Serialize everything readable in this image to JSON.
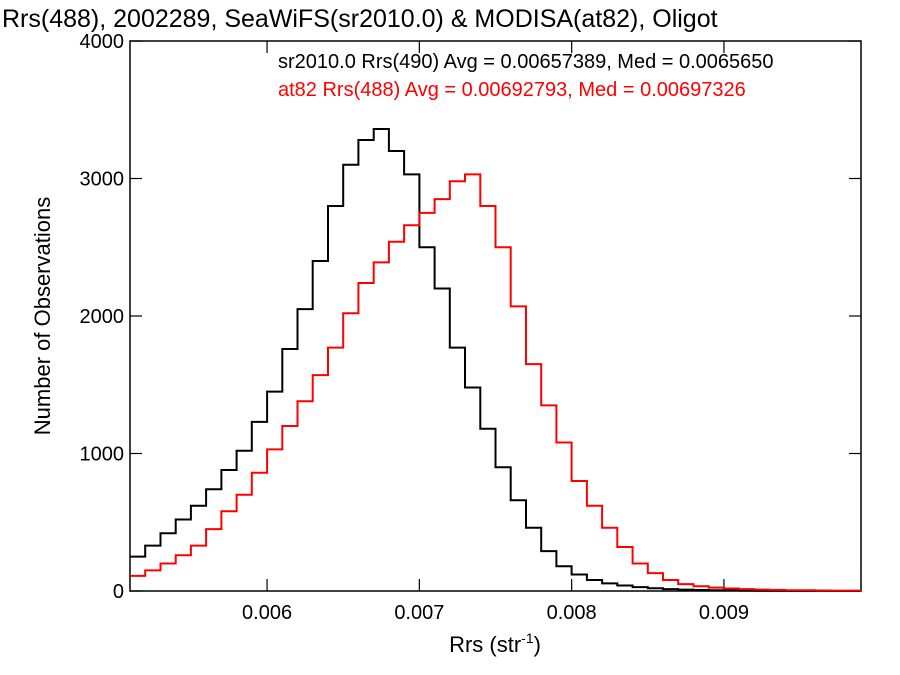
{
  "chart_data": {
    "type": "line",
    "title": "Rrs(488), 2002289, SeaWiFS(sr2010.0) & MODISA(at82), Oligot",
    "xlabel": "Rrs (str",
    "xlabel_sup": "-1",
    "xlabel_close": ")",
    "ylabel": "Number of Observations",
    "xlim": [
      0.0051,
      0.0099
    ],
    "ylim": [
      0,
      4000
    ],
    "x_ticks": [
      0.006,
      0.007,
      0.008,
      0.009
    ],
    "x_tick_labels": [
      "0.006",
      "0.007",
      "0.008",
      "0.009"
    ],
    "y_ticks": [
      0,
      1000,
      2000,
      3000,
      4000
    ],
    "y_tick_labels": [
      "0",
      "1000",
      "2000",
      "3000",
      "4000"
    ],
    "grid": false,
    "step": true,
    "series": [
      {
        "name": "sr2010.0 Rrs(490) Avg = 0.00657389, Med = 0.0065650",
        "color": "#000000",
        "x": [
          0.0051,
          0.0052,
          0.0053,
          0.0054,
          0.0055,
          0.0056,
          0.0057,
          0.0058,
          0.0059,
          0.006,
          0.0061,
          0.0062,
          0.0063,
          0.0064,
          0.0065,
          0.0066,
          0.0067,
          0.0068,
          0.0069,
          0.007,
          0.0071,
          0.0072,
          0.0073,
          0.0074,
          0.0075,
          0.0076,
          0.0077,
          0.0078,
          0.0079,
          0.008,
          0.0081,
          0.0082,
          0.0083,
          0.0084,
          0.0085,
          0.0086,
          0.0087,
          0.0088,
          0.0089,
          0.009,
          0.0091,
          0.0092,
          0.0093,
          0.0094,
          0.0095,
          0.0096,
          0.0097,
          0.0098,
          0.0099
        ],
        "values": [
          250,
          330,
          420,
          520,
          620,
          740,
          880,
          1020,
          1230,
          1450,
          1760,
          2050,
          2400,
          2800,
          3100,
          3280,
          3360,
          3200,
          3030,
          2500,
          2200,
          1770,
          1480,
          1180,
          900,
          660,
          460,
          290,
          180,
          120,
          80,
          55,
          40,
          28,
          20,
          14,
          10,
          7,
          5,
          4,
          3,
          2,
          2,
          1,
          1,
          1,
          0,
          0,
          0
        ]
      },
      {
        "name": "at82 Rrs(488) Avg = 0.00692793, Med = 0.00697326",
        "color": "#ff0000",
        "x": [
          0.0051,
          0.0052,
          0.0053,
          0.0054,
          0.0055,
          0.0056,
          0.0057,
          0.0058,
          0.0059,
          0.006,
          0.0061,
          0.0062,
          0.0063,
          0.0064,
          0.0065,
          0.0066,
          0.0067,
          0.0068,
          0.0069,
          0.007,
          0.0071,
          0.0072,
          0.0073,
          0.0074,
          0.0075,
          0.0076,
          0.0077,
          0.0078,
          0.0079,
          0.008,
          0.0081,
          0.0082,
          0.0083,
          0.0084,
          0.0085,
          0.0086,
          0.0087,
          0.0088,
          0.0089,
          0.009,
          0.0091,
          0.0092,
          0.0093,
          0.0094,
          0.0095,
          0.0096,
          0.0097,
          0.0098,
          0.0099
        ],
        "values": [
          110,
          150,
          200,
          260,
          330,
          450,
          580,
          700,
          860,
          1030,
          1200,
          1380,
          1570,
          1770,
          2020,
          2240,
          2390,
          2540,
          2660,
          2750,
          2850,
          2980,
          3030,
          2800,
          2500,
          2070,
          1650,
          1350,
          1080,
          800,
          620,
          460,
          320,
          200,
          130,
          80,
          50,
          35,
          25,
          18,
          14,
          10,
          8,
          6,
          5,
          4,
          3,
          3,
          2
        ]
      }
    ]
  }
}
